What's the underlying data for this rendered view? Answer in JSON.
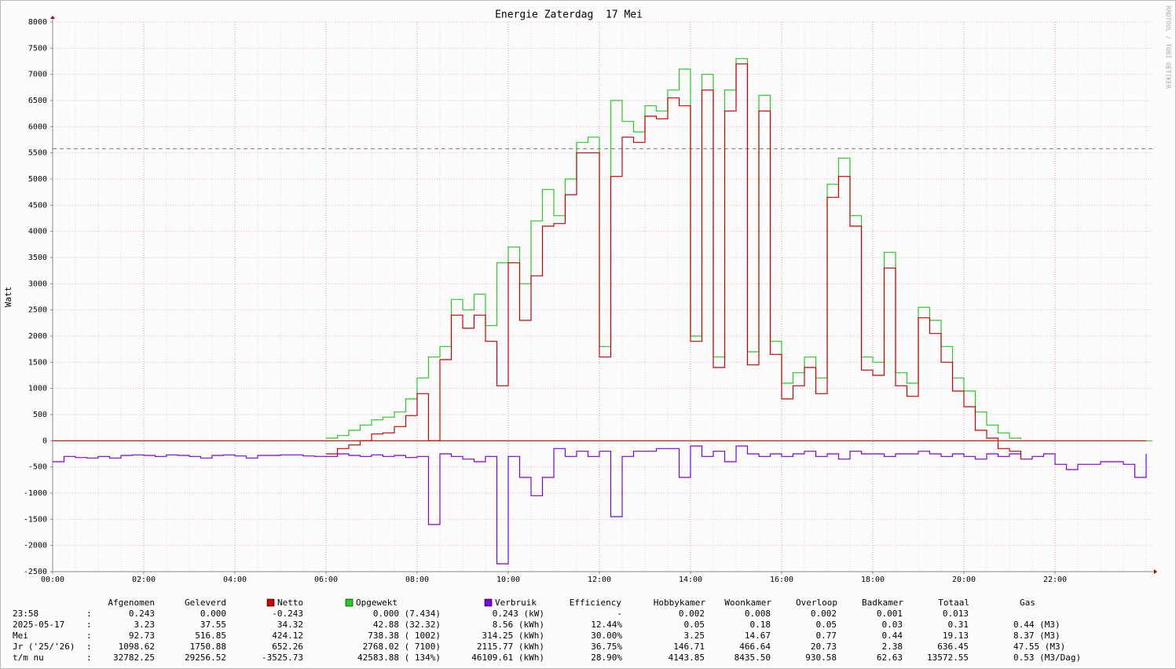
{
  "chart_data": {
    "type": "line",
    "title": "Energie Zaterdag  17 Mei",
    "y_label": "Watt",
    "watermark": "RRDTOOL / TOBI OETIKER",
    "x": [
      0,
      0.25,
      0.5,
      0.75,
      1,
      1.25,
      1.5,
      1.75,
      2,
      2.25,
      2.5,
      2.75,
      3,
      3.25,
      3.5,
      3.75,
      4,
      4.25,
      4.5,
      4.75,
      5,
      5.25,
      5.5,
      5.75,
      6,
      6.25,
      6.5,
      6.75,
      7,
      7.25,
      7.5,
      7.75,
      8,
      8.25,
      8.5,
      8.75,
      9,
      9.25,
      9.5,
      9.75,
      10,
      10.25,
      10.5,
      10.75,
      11,
      11.25,
      11.5,
      11.75,
      12,
      12.25,
      12.5,
      12.75,
      13,
      13.25,
      13.5,
      13.75,
      14,
      14.25,
      14.5,
      14.75,
      15,
      15.25,
      15.5,
      15.75,
      16,
      16.25,
      16.5,
      16.75,
      17,
      17.25,
      17.5,
      17.75,
      18,
      18.25,
      18.5,
      18.75,
      19,
      19.25,
      19.5,
      19.75,
      20,
      20.25,
      20.5,
      20.75,
      21,
      21.25,
      21.5,
      21.75,
      22,
      22.25,
      22.5,
      22.75,
      23,
      23.25,
      23.5,
      23.75,
      24
    ],
    "series": [
      {
        "name": "Verbruik",
        "color": "#7a00e0",
        "values": [
          -400,
          -300,
          -320,
          -330,
          -300,
          -330,
          -280,
          -270,
          -280,
          -300,
          -270,
          -280,
          -300,
          -330,
          -280,
          -270,
          -290,
          -330,
          -280,
          -280,
          -270,
          -270,
          -290,
          -300,
          -300,
          -250,
          -280,
          -300,
          -270,
          -300,
          -280,
          -320,
          -300,
          -1600,
          -250,
          -300,
          -350,
          -400,
          -300,
          -2350,
          -300,
          -700,
          -1050,
          -700,
          -150,
          -300,
          -200,
          -300,
          -200,
          -1450,
          -300,
          -200,
          -200,
          -150,
          -150,
          -700,
          -100,
          -300,
          -200,
          -400,
          -100,
          -250,
          -300,
          -250,
          -300,
          -250,
          -200,
          -300,
          -250,
          -350,
          -200,
          -250,
          -250,
          -300,
          -250,
          -250,
          -200,
          -250,
          -300,
          -250,
          -300,
          -350,
          -250,
          -300,
          -250,
          -350,
          -300,
          -250,
          -450,
          -550,
          -450,
          -450,
          -400,
          -400,
          -450,
          -700,
          -250
        ]
      },
      {
        "name": "Opgewekt",
        "color": "#22cc22",
        "values": [
          null,
          null,
          null,
          null,
          null,
          null,
          null,
          null,
          null,
          null,
          null,
          null,
          null,
          null,
          null,
          null,
          null,
          null,
          null,
          null,
          null,
          null,
          null,
          null,
          50,
          100,
          200,
          300,
          400,
          450,
          550,
          800,
          1200,
          1600,
          1800,
          2700,
          2500,
          2800,
          2200,
          3400,
          3700,
          3000,
          4200,
          4800,
          4300,
          5000,
          5700,
          5800,
          1800,
          6500,
          6100,
          5900,
          6400,
          6300,
          6700,
          7100,
          2000,
          7000,
          1600,
          6700,
          7300,
          1700,
          6600,
          1900,
          1100,
          1300,
          1600,
          1200,
          4900,
          5400,
          4300,
          1600,
          1500,
          3600,
          1300,
          1100,
          2550,
          2300,
          1800,
          1200,
          950,
          550,
          300,
          150,
          50,
          30,
          null,
          null,
          null,
          null,
          null,
          null,
          null,
          null,
          null,
          null,
          null
        ]
      },
      {
        "name": "Netto",
        "color": "#cc0000",
        "values": [
          null,
          null,
          null,
          null,
          null,
          null,
          null,
          null,
          null,
          null,
          null,
          null,
          null,
          null,
          null,
          null,
          null,
          null,
          null,
          null,
          null,
          null,
          null,
          null,
          -250,
          -150,
          -80,
          0,
          130,
          150,
          270,
          480,
          900,
          0,
          1550,
          2400,
          2150,
          2400,
          1900,
          1050,
          3400,
          2300,
          3150,
          4100,
          4150,
          4700,
          5500,
          5500,
          1600,
          5050,
          5800,
          5700,
          6200,
          6150,
          6550,
          6400,
          1900,
          6700,
          1400,
          6300,
          7200,
          1450,
          6300,
          1650,
          800,
          1050,
          1400,
          900,
          4650,
          5050,
          4100,
          1350,
          1250,
          3300,
          1050,
          850,
          2350,
          2050,
          1500,
          950,
          650,
          200,
          50,
          -150,
          -200,
          -320,
          null,
          null,
          null,
          null,
          null,
          null,
          null,
          null,
          null,
          null,
          null
        ]
      }
    ],
    "hline": 5580,
    "xlim": [
      0,
      24
    ],
    "xticks": [
      {
        "value": 0,
        "label": "00:00"
      },
      {
        "value": 2,
        "label": "02:00"
      },
      {
        "value": 4,
        "label": "04:00"
      },
      {
        "value": 6,
        "label": "06:00"
      },
      {
        "value": 8,
        "label": "08:00"
      },
      {
        "value": 10,
        "label": "10:00"
      },
      {
        "value": 12,
        "label": "12:00"
      },
      {
        "value": 14,
        "label": "14:00"
      },
      {
        "value": 16,
        "label": "16:00"
      },
      {
        "value": 18,
        "label": "18:00"
      },
      {
        "value": 20,
        "label": "20:00"
      },
      {
        "value": 22,
        "label": "22:00"
      }
    ],
    "ylim": [
      -2500,
      8000
    ],
    "yticks": [
      -2500,
      -2000,
      -1500,
      -1000,
      -500,
      0,
      500,
      1000,
      1500,
      2000,
      2500,
      3000,
      3500,
      4000,
      4500,
      5000,
      5500,
      6000,
      6500,
      7000,
      7500,
      8000
    ],
    "grid": true
  },
  "summary_table": {
    "header": [
      "Afgenomen",
      "Geleverd",
      "Efficiency",
      "Hobbykamer",
      "Woonkamer",
      "Overloop",
      "Badkamer",
      "Totaal",
      "Gas"
    ],
    "rows": [
      [
        "23:58",
        ":",
        "0.243",
        "0.000",
        "-0.243",
        "0.000 (7.434)",
        "0.243 (kW)",
        "-",
        "0.002",
        "0.008",
        "0.002",
        "0.001",
        "0.013"
      ],
      [
        "2025-05-17",
        ":",
        "3.23",
        "37.55",
        "34.32",
        "42.88 (32.32)",
        "8.56 (kWh)",
        "12.44%",
        "0.05",
        "0.18",
        "0.05",
        "0.03",
        "0.31",
        "0.44 (M3)"
      ],
      [
        "Mei",
        ":",
        "92.73",
        "516.85",
        "424.12",
        "738.38 ( 1002)",
        "314.25 (kWh)",
        "30.00%",
        "3.25",
        "14.67",
        "0.77",
        "0.44",
        "19.13",
        "8.37 (M3)"
      ],
      [
        "Jr ('25/'26)",
        ":",
        "1098.62",
        "1750.88",
        "652.26",
        "2768.02 ( 7100)",
        "2115.77 (kWh)",
        "36.75%",
        "146.71",
        "466.64",
        "20.73",
        "2.38",
        "636.45",
        "47.55 (M3)"
      ],
      [
        "t/m nu",
        ":",
        "32782.25",
        "29256.52",
        "-3525.73",
        "42583.88 ( 134%)",
        "46109.61 (kWh)",
        "28.90%",
        "4143.85",
        "8435.50",
        "930.58",
        "62.63",
        "13572.55",
        "0.53 (M3/Dag)"
      ]
    ]
  }
}
